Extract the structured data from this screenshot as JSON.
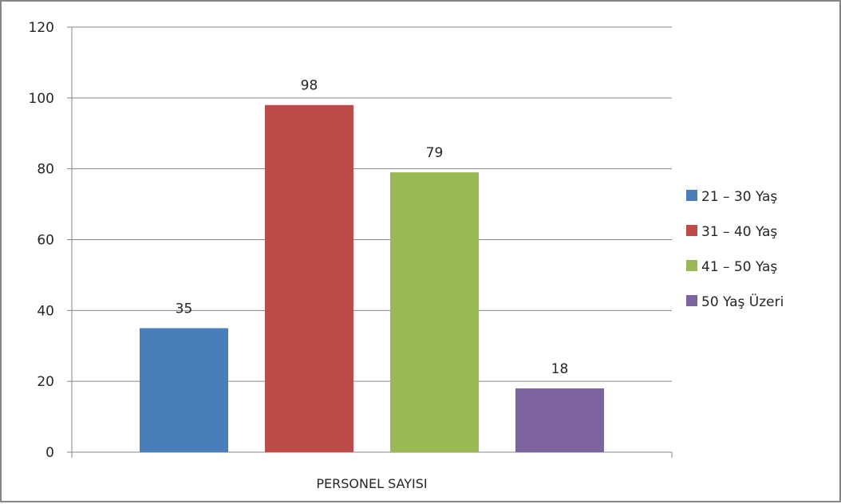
{
  "chart_data": {
    "type": "bar",
    "categories": [
      "PERSONEL SAYISI"
    ],
    "series": [
      {
        "name": "21 – 30 Yaş",
        "values": [
          35
        ],
        "color": "#4a7ebb"
      },
      {
        "name": "31 – 40 Yaş",
        "values": [
          98
        ],
        "color": "#be4b48"
      },
      {
        "name": "41 – 50 Yaş",
        "values": [
          79
        ],
        "color": "#98b954"
      },
      {
        "name": "50 Yaş Üzeri",
        "values": [
          18
        ],
        "color": "#7e649e"
      }
    ],
    "title": "",
    "xlabel": "",
    "ylabel": "",
    "ylim": [
      0,
      120
    ],
    "yticks": [
      0,
      20,
      40,
      60,
      80,
      100,
      120
    ],
    "grid": true,
    "legend": "right",
    "data_labels": true
  }
}
